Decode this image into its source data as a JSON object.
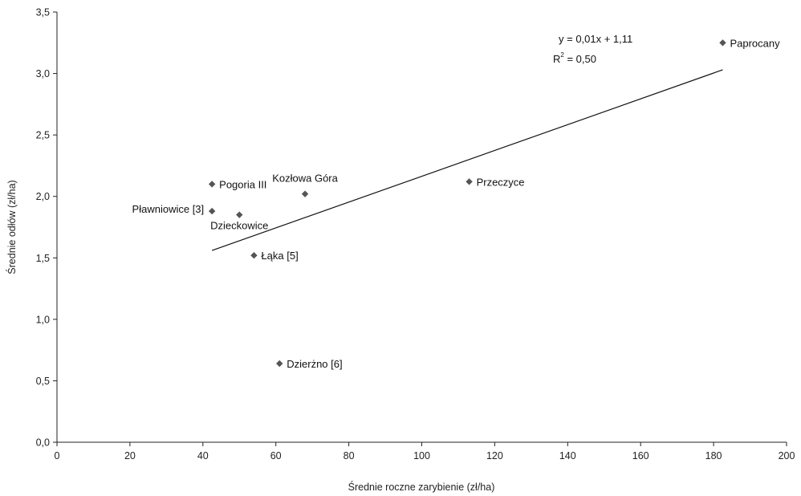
{
  "chart_data": {
    "type": "scatter",
    "xlabel": "Średnie roczne zarybienie (zł/ha)",
    "ylabel": "Średnie odłów (zł/ha)",
    "xlim": [
      0,
      200
    ],
    "ylim": [
      0,
      3.5
    ],
    "xticks": [
      0,
      20,
      40,
      60,
      80,
      100,
      120,
      140,
      160,
      180,
      200
    ],
    "yticks": [
      0,
      0.5,
      1,
      1.5,
      2,
      2.5,
      3,
      3.5
    ],
    "xtick_labels": [
      "0",
      "20",
      "40",
      "60",
      "80",
      "100",
      "120",
      "140",
      "160",
      "180",
      "200"
    ],
    "ytick_labels": [
      "0,0",
      "0,5",
      "1,0",
      "1,5",
      "2,0",
      "2,5",
      "3,0",
      "3,5"
    ],
    "grid": false,
    "marker": "diamond",
    "marker_color": "#555555",
    "points": [
      {
        "label": "Pogoria III",
        "x": 42.5,
        "y": 2.1,
        "label_pos": "right"
      },
      {
        "label": "Pławniowice [3]",
        "x": 42.5,
        "y": 1.88,
        "label_pos": "left"
      },
      {
        "label": "Dzieckowice",
        "x": 50,
        "y": 1.85,
        "label_pos": "below"
      },
      {
        "label": "Kozłowa Góra",
        "x": 68,
        "y": 2.02,
        "label_pos": "above"
      },
      {
        "label": "Łąka [5]",
        "x": 54,
        "y": 1.52,
        "label_pos": "right"
      },
      {
        "label": "Dzierżno [6]",
        "x": 61,
        "y": 0.64,
        "label_pos": "right"
      },
      {
        "label": "Przeczyce",
        "x": 113,
        "y": 2.12,
        "label_pos": "right"
      },
      {
        "label": "Paprocany",
        "x": 182.5,
        "y": 3.25,
        "label_pos": "right"
      }
    ],
    "trendline": {
      "x_range": [
        42.5,
        182.5
      ],
      "y_range": [
        1.56,
        3.03
      ],
      "equation": "y = 0,01x + 1,11",
      "r2_prefix": "R",
      "r2_superscript": "2",
      "r2_value": " = 0,50"
    }
  }
}
